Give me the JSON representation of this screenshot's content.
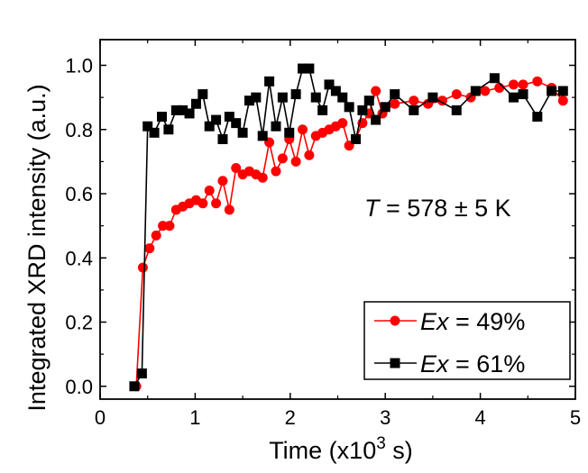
{
  "chart_data": {
    "type": "line",
    "title": "",
    "xlabel": "Time (x10^3 s)",
    "xlabel_prefix": "Time (x10",
    "xlabel_sup": "3",
    "xlabel_suffix": " s)",
    "ylabel": "Integrated XRD intensity (a.u.)",
    "xlim": [
      0,
      5
    ],
    "ylim": [
      -0.04,
      1.08
    ],
    "xticks": [
      0,
      1,
      2,
      3,
      4,
      5
    ],
    "xtick_labels": [
      "0",
      "1",
      "2",
      "3",
      "4",
      "5"
    ],
    "yticks": [
      0.0,
      0.2,
      0.4,
      0.6,
      0.8,
      1.0
    ],
    "ytick_labels": [
      "0.0",
      "0.2",
      "0.4",
      "0.6",
      "0.8",
      "1.0"
    ],
    "grid": false,
    "annotation": {
      "var": "T",
      "text": " = 578 ± 5 K"
    },
    "legend_position": "bottom-right",
    "series": [
      {
        "name": "Ex = 49%",
        "label_var": "Ex",
        "label_text": " = 49%",
        "color": "#ff0000",
        "marker": "circle",
        "x": [
          0.38,
          0.45,
          0.52,
          0.59,
          0.66,
          0.73,
          0.8,
          0.87,
          0.94,
          1.01,
          1.08,
          1.15,
          1.22,
          1.29,
          1.36,
          1.43,
          1.5,
          1.57,
          1.64,
          1.71,
          1.78,
          1.85,
          1.92,
          1.99,
          2.06,
          2.13,
          2.2,
          2.27,
          2.34,
          2.41,
          2.48,
          2.55,
          2.62,
          2.69,
          2.76,
          2.83,
          2.9,
          2.97,
          3.1,
          3.3,
          3.45,
          3.6,
          3.75,
          3.9,
          4.05,
          4.2,
          4.35,
          4.45,
          4.6,
          4.75,
          4.87
        ],
        "y": [
          0.0,
          0.37,
          0.43,
          0.47,
          0.5,
          0.5,
          0.55,
          0.56,
          0.57,
          0.58,
          0.57,
          0.61,
          0.57,
          0.64,
          0.55,
          0.68,
          0.66,
          0.67,
          0.66,
          0.65,
          0.76,
          0.67,
          0.71,
          0.77,
          0.7,
          0.8,
          0.72,
          0.78,
          0.79,
          0.8,
          0.81,
          0.82,
          0.75,
          0.77,
          0.82,
          0.85,
          0.92,
          0.85,
          0.88,
          0.89,
          0.88,
          0.89,
          0.91,
          0.9,
          0.92,
          0.93,
          0.94,
          0.94,
          0.95,
          0.93,
          0.89
        ]
      },
      {
        "name": "Ex = 61%",
        "label_var": "Ex",
        "label_text": " = 61%",
        "color": "#000000",
        "marker": "square",
        "x": [
          0.36,
          0.44,
          0.5,
          0.57,
          0.65,
          0.72,
          0.8,
          0.87,
          0.94,
          1.01,
          1.08,
          1.15,
          1.22,
          1.29,
          1.36,
          1.43,
          1.5,
          1.57,
          1.64,
          1.71,
          1.78,
          1.85,
          1.92,
          1.99,
          2.06,
          2.13,
          2.2,
          2.27,
          2.34,
          2.41,
          2.48,
          2.55,
          2.62,
          2.69,
          2.76,
          2.83,
          2.9,
          3.0,
          3.1,
          3.3,
          3.5,
          3.75,
          3.95,
          4.15,
          4.35,
          4.45,
          4.6,
          4.75,
          4.87
        ],
        "y": [
          0.0,
          0.04,
          0.81,
          0.79,
          0.84,
          0.8,
          0.86,
          0.86,
          0.85,
          0.88,
          0.91,
          0.81,
          0.83,
          0.77,
          0.84,
          0.82,
          0.79,
          0.89,
          0.9,
          0.78,
          0.95,
          0.81,
          0.9,
          0.79,
          0.91,
          0.99,
          0.99,
          0.9,
          0.86,
          0.94,
          0.92,
          0.9,
          0.87,
          0.77,
          0.86,
          0.89,
          0.83,
          0.87,
          0.91,
          0.86,
          0.9,
          0.86,
          0.92,
          0.96,
          0.9,
          0.91,
          0.84,
          0.92,
          0.92
        ]
      }
    ]
  }
}
